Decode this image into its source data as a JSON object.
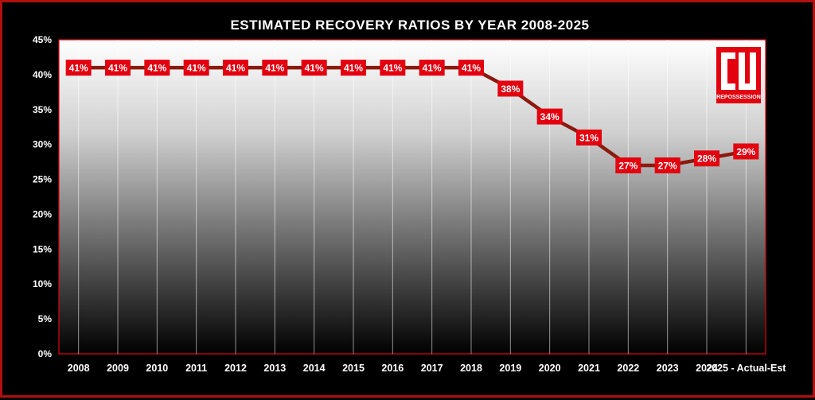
{
  "chart_data": {
    "type": "line",
    "title": "ESTIMATED RECOVERY RATIOS BY YEAR 2008-2025",
    "categories": [
      "2008",
      "2009",
      "2010",
      "2011",
      "2012",
      "2013",
      "2014",
      "2015",
      "2016",
      "2017",
      "2018",
      "2019",
      "2020",
      "2021",
      "2022",
      "2023",
      "2024",
      "2025 - Actual-Est"
    ],
    "values": [
      41,
      41,
      41,
      41,
      41,
      41,
      41,
      41,
      41,
      41,
      41,
      38,
      34,
      31,
      27,
      27,
      28,
      29
    ],
    "data_labels": [
      "41%",
      "41%",
      "41%",
      "41%",
      "41%",
      "41%",
      "41%",
      "41%",
      "41%",
      "41%",
      "41%",
      "38%",
      "34%",
      "31%",
      "27%",
      "27%",
      "28%",
      "29%"
    ],
    "ylim": [
      0,
      45
    ],
    "yticks": [
      0,
      5,
      10,
      15,
      20,
      25,
      30,
      35,
      40,
      45
    ],
    "ytick_labels": [
      "0%",
      "5%",
      "10%",
      "15%",
      "20%",
      "25%",
      "30%",
      "35%",
      "40%",
      "45%"
    ],
    "xlabel": "",
    "ylabel": "",
    "grid": "vertical",
    "legend": "none",
    "colors": {
      "line": "#8b1a0e",
      "label_box": "#e3000f",
      "frame": "#b01010",
      "plot_border": "#e3000f",
      "background": "#000000",
      "plot_gradient_top": "#ffffff",
      "plot_gradient_bottom": "#000000"
    }
  },
  "logo": {
    "letters": "CU",
    "text": "REPOSSESSION",
    "color": "#e3000f"
  }
}
